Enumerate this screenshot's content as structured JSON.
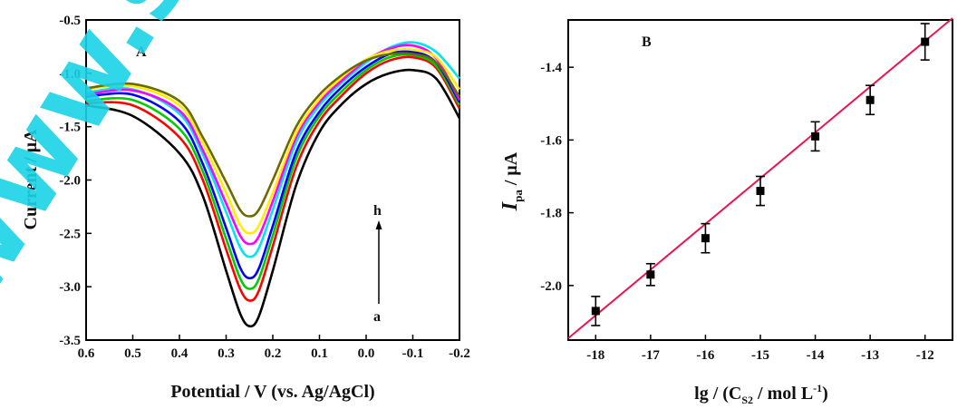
{
  "watermark": "www.spi",
  "chart_data": [
    {
      "type": "line",
      "panel_label": "A",
      "xlabel": "Potential / V (vs. Ag/AgCl)",
      "ylabel": "Current / μA",
      "xlim": [
        0.6,
        -0.2
      ],
      "ylim": [
        -3.5,
        -0.5
      ],
      "x_reversed": true,
      "xticks": [
        "0.6",
        "0.5",
        "0.4",
        "0.3",
        "0.2",
        "0.1",
        "0.0",
        "-0.1",
        "-0.2"
      ],
      "yticks": [
        "-0.5",
        "-1.0",
        "-1.5",
        "-2.0",
        "-2.5",
        "-3.0",
        "-3.5"
      ],
      "arrow_from": "a",
      "arrow_to": "h",
      "x": [
        0.6,
        0.5,
        0.4,
        0.35,
        0.3,
        0.27,
        0.25,
        0.23,
        0.2,
        0.15,
        0.1,
        0.05,
        0.0,
        -0.05,
        -0.1,
        -0.15,
        -0.2
      ],
      "series": [
        {
          "id": "a",
          "color": "#000000",
          "values": [
            -1.3,
            -1.4,
            -1.75,
            -2.15,
            -2.85,
            -3.25,
            -3.37,
            -3.28,
            -2.85,
            -2.05,
            -1.55,
            -1.28,
            -1.1,
            -1.0,
            -0.97,
            -1.05,
            -1.42
          ]
        },
        {
          "id": "b",
          "color": "#ff0000",
          "values": [
            -1.28,
            -1.3,
            -1.6,
            -2.0,
            -2.65,
            -3.02,
            -3.13,
            -3.04,
            -2.62,
            -1.88,
            -1.45,
            -1.2,
            -1.0,
            -0.88,
            -0.85,
            -0.95,
            -1.33
          ]
        },
        {
          "id": "c",
          "color": "#00cc00",
          "values": [
            -1.26,
            -1.25,
            -1.52,
            -1.92,
            -2.55,
            -2.92,
            -3.02,
            -2.93,
            -2.52,
            -1.8,
            -1.4,
            -1.16,
            -0.97,
            -0.85,
            -0.83,
            -0.93,
            -1.3
          ]
        },
        {
          "id": "d",
          "color": "#0000ff",
          "values": [
            -1.22,
            -1.2,
            -1.45,
            -1.85,
            -2.45,
            -2.82,
            -2.92,
            -2.83,
            -2.43,
            -1.74,
            -1.36,
            -1.12,
            -0.94,
            -0.82,
            -0.8,
            -0.9,
            -1.27
          ]
        },
        {
          "id": "e",
          "color": "#00e5ee",
          "values": [
            -1.18,
            -1.15,
            -1.38,
            -1.76,
            -2.3,
            -2.63,
            -2.72,
            -2.64,
            -2.28,
            -1.65,
            -1.3,
            -1.08,
            -0.9,
            -0.76,
            -0.71,
            -0.8,
            -1.05
          ]
        },
        {
          "id": "f",
          "color": "#ff00ff",
          "values": [
            -1.2,
            -1.16,
            -1.35,
            -1.72,
            -2.22,
            -2.52,
            -2.6,
            -2.53,
            -2.2,
            -1.6,
            -1.27,
            -1.06,
            -0.88,
            -0.77,
            -0.74,
            -0.86,
            -1.25
          ]
        },
        {
          "id": "g",
          "color": "#ffee00",
          "values": [
            -1.15,
            -1.12,
            -1.3,
            -1.65,
            -2.12,
            -2.42,
            -2.5,
            -2.43,
            -2.12,
            -1.56,
            -1.24,
            -1.03,
            -0.87,
            -0.79,
            -0.78,
            -0.85,
            -1.15
          ]
        },
        {
          "id": "h",
          "color": "#6b6b00",
          "values": [
            -1.14,
            -1.1,
            -1.26,
            -1.6,
            -2.02,
            -2.28,
            -2.34,
            -2.28,
            -2.0,
            -1.5,
            -1.2,
            -1.01,
            -0.88,
            -0.82,
            -0.82,
            -0.9,
            -1.22
          ]
        }
      ]
    },
    {
      "type": "scatter",
      "panel_label": "B",
      "xlabel_main": "lg / (C",
      "xlabel_sub": "S2",
      "xlabel_tail": " / mol L",
      "xlabel_sup": "-1",
      "xlabel_close": ")",
      "ylabel_main": "I",
      "ylabel_sub": "pa",
      "ylabel_tail": " / μA",
      "xlim": [
        -18.5,
        -11.5
      ],
      "ylim": [
        -2.15,
        -1.27
      ],
      "xticks": [
        "-18",
        "-17",
        "-16",
        "-15",
        "-14",
        "-13",
        "-12"
      ],
      "yticks": [
        "-1.4",
        "-1.6",
        "-1.8",
        "-2.0"
      ],
      "x": [
        -18,
        -17,
        -16,
        -15,
        -14,
        -13,
        -12
      ],
      "y": [
        -2.07,
        -1.97,
        -1.87,
        -1.74,
        -1.59,
        -1.49,
        -1.33
      ],
      "err": [
        0.04,
        0.03,
        0.04,
        0.04,
        0.04,
        0.04,
        0.05
      ],
      "fit": {
        "x": [
          -18.5,
          -11.5
        ],
        "y": [
          -2.145,
          -1.265
        ],
        "color": "#e8174b"
      }
    }
  ]
}
